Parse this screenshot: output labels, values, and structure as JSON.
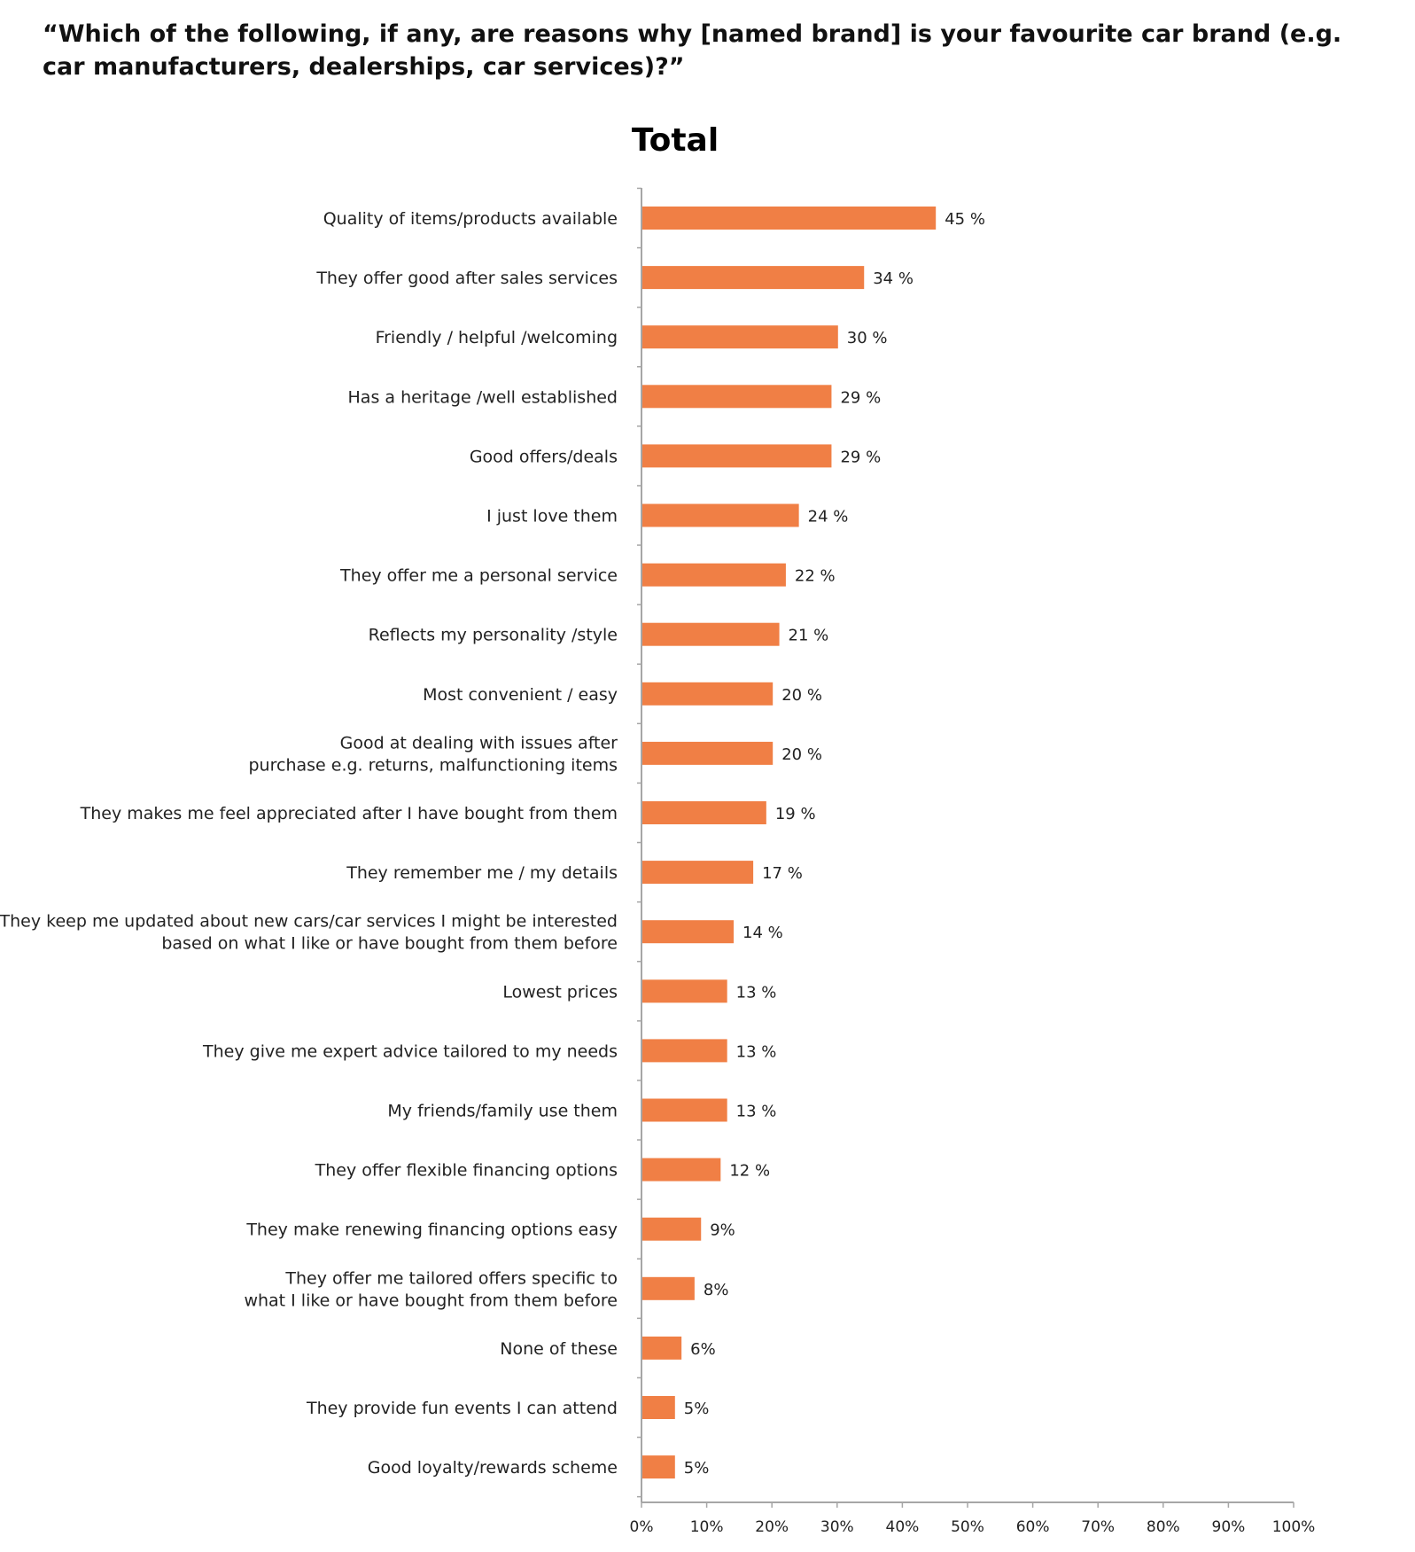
{
  "question": "“Which of the following, if any, are reasons why [named brand] is your favourite car brand (e.g. car manufacturers, dealerships, car services)?”",
  "colors": {
    "bar": "#F07F45",
    "axis": "#a6a6a6",
    "text": "#222222"
  },
  "chart_data": {
    "type": "bar",
    "orientation": "horizontal",
    "title": "Total",
    "xlabel": "",
    "ylabel": "",
    "xlim": [
      0,
      100
    ],
    "grid": false,
    "categories": [
      "Quality of items/products available",
      "They offer good after sales services",
      "Friendly / helpful /welcoming",
      "Has a heritage /well established",
      "Good offers/deals",
      "I just love them",
      "They offer me a personal service",
      "Reflects my personality /style",
      "Most convenient / easy",
      [
        "Good at dealing with issues after",
        "purchase e.g. returns, malfunctioning items"
      ],
      "They makes me feel appreciated after I have bought from them",
      "They remember me / my details",
      [
        "They keep me updated about new cars/car services I might be interested",
        "based on what I like or have bought from them before"
      ],
      "Lowest prices",
      "They give me expert advice tailored to my needs",
      "My friends/family use them",
      "They offer flexible financing options",
      "They make renewing financing options easy",
      [
        "They offer me tailored offers specific to",
        "what I like or have bought from them before"
      ],
      "None of these",
      "They provide fun events I can attend",
      "Good loyalty/rewards scheme"
    ],
    "values": [
      45,
      34,
      30,
      29,
      29,
      24,
      22,
      21,
      20,
      20,
      19,
      17,
      14,
      13,
      13,
      13,
      12,
      9,
      8,
      6,
      5,
      5
    ],
    "value_labels": [
      "45 %",
      "34 %",
      "30 %",
      "29 %",
      "29 %",
      "24 %",
      "22 %",
      "21 %",
      "20 %",
      "20 %",
      "19 %",
      "17 %",
      "14 %",
      "13 %",
      "13 %",
      "13 %",
      "12 %",
      "9%",
      "8%",
      "6%",
      "5%",
      "5%"
    ],
    "x_ticks": [
      "0%",
      "10%",
      "20%",
      "30%",
      "40%",
      "50%",
      "60%",
      "70%",
      "80%",
      "90%",
      "100%"
    ]
  }
}
